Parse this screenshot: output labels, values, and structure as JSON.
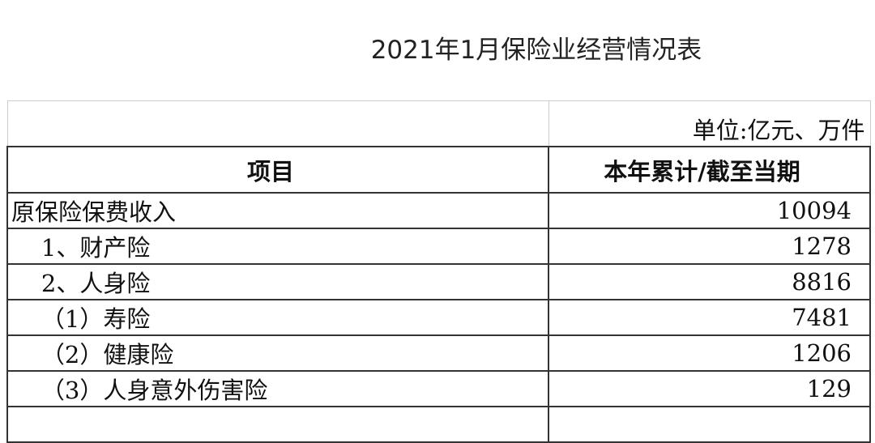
{
  "title": "2021年1月保险业经营情况表",
  "unit": "单位:亿元、万件",
  "headers": [
    "项目",
    "本年累计/截至当期"
  ],
  "rows": [
    {
      "item": "原保险保费收入",
      "value": "10094"
    },
    {
      "item": "    1、财产险",
      "value": "1278"
    },
    {
      "item": "    2、人身险",
      "value": "8816"
    },
    {
      "item": "    （1）寿险",
      "value": "7481"
    },
    {
      "item": "    （2）健康险",
      "value": "1206"
    },
    {
      "item": "    （3）人身意外伤害险",
      "value": "129"
    },
    {
      "item": "",
      "value": ""
    }
  ]
}
